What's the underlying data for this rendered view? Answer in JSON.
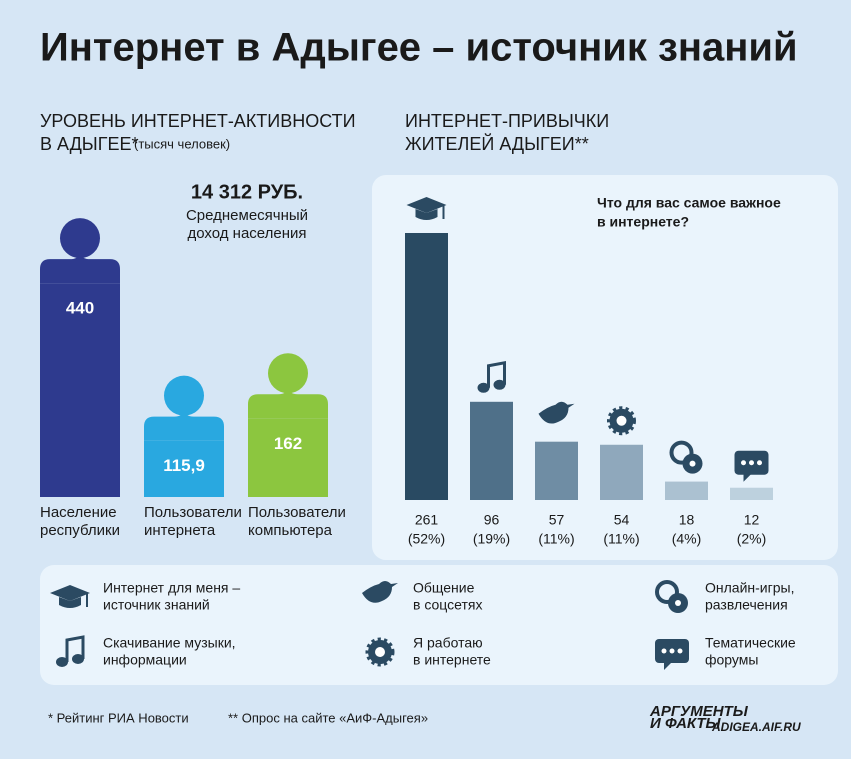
{
  "title": "Интернет в Адыгее – источник знаний",
  "chart_data": [
    {
      "type": "bar",
      "title": [
        "УРОВЕНЬ ИНТЕРНЕТ-АКТИВНОСТИ",
        "В АДЫГЕЕ*"
      ],
      "subtitle": "(тысяч человек)",
      "annotation": {
        "amount": "14 312 РУБ.",
        "text": [
          "Среднемесячный",
          "доход населения"
        ]
      },
      "categories": [
        [
          "Население",
          "республики"
        ],
        [
          "Пользователи",
          "интернета"
        ],
        [
          "Пользователи",
          "компьютера"
        ]
      ],
      "values": [
        440,
        115.9,
        162
      ],
      "value_labels": [
        "440",
        "115,9",
        "162"
      ],
      "colors": [
        "#2e3a8e",
        "#29a8e0",
        "#8cc63f"
      ]
    },
    {
      "type": "bar",
      "title": [
        "ИНТЕРНЕТ-ПРИВЫЧКИ",
        "ЖИТЕЛЕЙ АДЫГЕИ**"
      ],
      "question": [
        "Что для вас самое важное",
        "в интернете?"
      ],
      "values": [
        261,
        96,
        57,
        54,
        18,
        12
      ],
      "share_labels": [
        "(52%)",
        "(19%)",
        "(11%)",
        "(11%)",
        "(4%)",
        "(2%)"
      ],
      "colors": [
        "#294a62",
        "#4f7089",
        "#6f8da4",
        "#8fa8bc",
        "#abc1d1",
        "#bdd1de"
      ]
    }
  ],
  "legend": [
    {
      "lines": [
        "Интернет для меня –",
        "источник знаний"
      ]
    },
    {
      "lines": [
        "Скачивание музыки,",
        "информации"
      ]
    },
    {
      "lines": [
        "Общение",
        "в соцсетях"
      ]
    },
    {
      "lines": [
        "Я работаю",
        "в интернете"
      ]
    },
    {
      "lines": [
        "Онлайн-игры,",
        "развлечения"
      ]
    },
    {
      "lines": [
        "Тематические",
        "форумы"
      ]
    }
  ],
  "footnotes": [
    "* Рейтинг РИА Новости",
    "** Опрос на сайте «АиФ-Адыгея»"
  ],
  "logo": {
    "brand": [
      "АРГУМЕНТЫ",
      "И ФАКТЫ"
    ],
    "site": "ADIGEA.AIF.RU"
  }
}
